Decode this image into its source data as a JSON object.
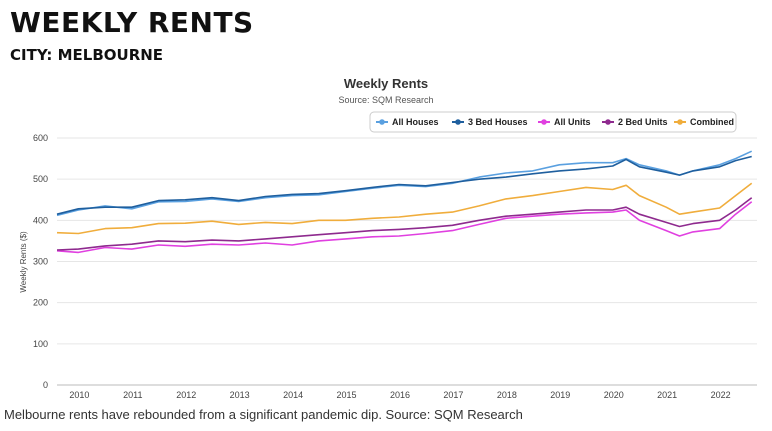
{
  "header": {
    "title": "WEEKLY RENTS",
    "subtitle": "CITY: MELBOURNE"
  },
  "caption": "Melbourne rents have rebounded from a significant pandemic dip. Source: SQM Research",
  "chart_data": {
    "type": "line",
    "title": "Weekly Rents",
    "subtitle": "Source: SQM Research",
    "xlabel": "",
    "ylabel": "Weekly Rents ($)",
    "xlim": [
      2009.6,
      2022.7
    ],
    "ylim": [
      0,
      600
    ],
    "yticks": [
      0,
      100,
      200,
      300,
      400,
      500,
      600
    ],
    "xticks": [
      "2010",
      "2011",
      "2012",
      "2013",
      "2014",
      "2015",
      "2016",
      "2017",
      "2018",
      "2019",
      "2020",
      "2021",
      "2022"
    ],
    "grid": true,
    "legend_position": "top-right",
    "x": [
      2009.6,
      2010.0,
      2010.5,
      2011.0,
      2011.5,
      2012.0,
      2012.5,
      2013.0,
      2013.5,
      2014.0,
      2014.5,
      2015.0,
      2015.5,
      2016.0,
      2016.5,
      2017.0,
      2017.5,
      2018.0,
      2018.5,
      2019.0,
      2019.5,
      2020.0,
      2020.25,
      2020.5,
      2021.0,
      2021.25,
      2021.5,
      2022.0,
      2022.3,
      2022.6
    ],
    "series": [
      {
        "name": "All Houses",
        "color": "#5aa0e0",
        "values": [
          412,
          425,
          435,
          428,
          445,
          446,
          452,
          446,
          455,
          460,
          462,
          470,
          478,
          485,
          482,
          490,
          505,
          515,
          520,
          535,
          540,
          540,
          550,
          535,
          520,
          510,
          520,
          535,
          550,
          568
        ]
      },
      {
        "name": "3 Bed Houses",
        "color": "#1f5f9e",
        "values": [
          415,
          428,
          432,
          432,
          448,
          450,
          455,
          448,
          458,
          463,
          465,
          472,
          480,
          487,
          484,
          492,
          500,
          505,
          513,
          520,
          525,
          532,
          548,
          530,
          517,
          510,
          520,
          530,
          545,
          555
        ]
      },
      {
        "name": "All Units",
        "color": "#e040e0",
        "values": [
          326,
          322,
          334,
          330,
          340,
          337,
          342,
          340,
          345,
          340,
          350,
          355,
          360,
          362,
          368,
          375,
          390,
          405,
          410,
          415,
          418,
          420,
          425,
          400,
          375,
          362,
          372,
          380,
          415,
          445
        ]
      },
      {
        "name": "2 Bed Units",
        "color": "#8e2a8e",
        "values": [
          328,
          330,
          338,
          342,
          350,
          348,
          352,
          350,
          355,
          360,
          365,
          370,
          375,
          378,
          382,
          388,
          400,
          410,
          415,
          420,
          425,
          425,
          432,
          415,
          395,
          385,
          392,
          400,
          425,
          455
        ]
      },
      {
        "name": "Combined",
        "color": "#f0ad3c",
        "values": [
          370,
          368,
          380,
          382,
          392,
          393,
          398,
          390,
          395,
          392,
          400,
          400,
          405,
          408,
          415,
          420,
          435,
          452,
          460,
          470,
          480,
          475,
          485,
          460,
          432,
          415,
          420,
          430,
          460,
          490
        ]
      }
    ]
  }
}
